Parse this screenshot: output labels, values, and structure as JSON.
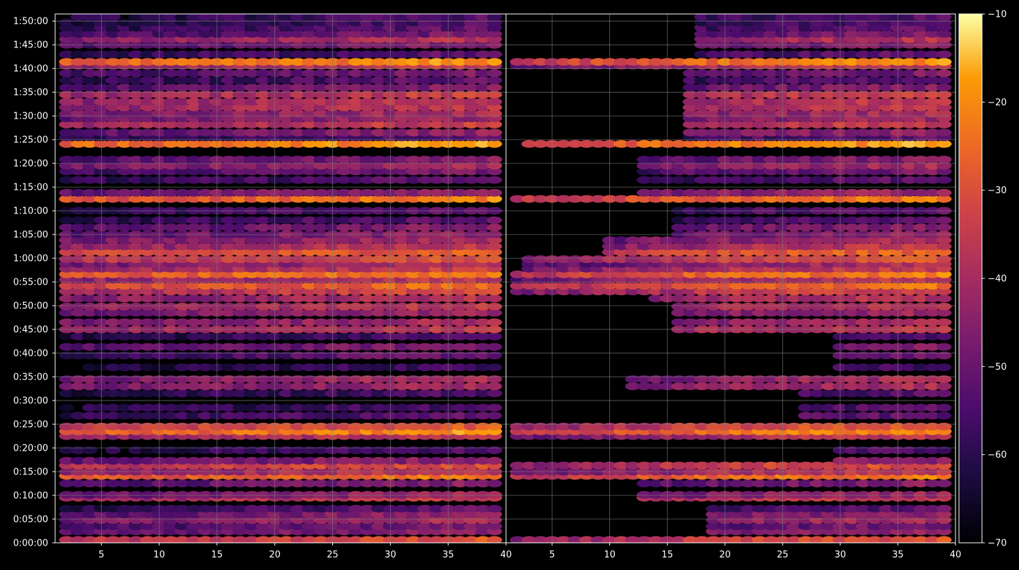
{
  "chart_data": [
    {
      "type": "heatmap",
      "panel": "left",
      "x_ticks": [
        5,
        10,
        15,
        20,
        25,
        30,
        35,
        40
      ],
      "xlim": [
        1,
        40
      ],
      "y_ticks": [
        "0:00:00",
        "0:05:00",
        "0:10:00",
        "0:15:00",
        "0:20:00",
        "0:25:00",
        "0:30:00",
        "0:35:00",
        "0:40:00",
        "0:45:00",
        "0:50:00",
        "0:55:00",
        "1:00:00",
        "1:05:00",
        "1:10:00",
        "1:15:00",
        "1:20:00",
        "1:25:00",
        "1:30:00",
        "1:35:00",
        "1:40:00",
        "1:45:00",
        "1:50:00"
      ],
      "y_range_minutes": [
        0,
        111.5
      ],
      "grid": true,
      "bands": [
        {
          "t": 0.6,
          "level": -34
        },
        {
          "t": 2.4,
          "level": -48
        },
        {
          "t": 3.5,
          "level": -52
        },
        {
          "t": 4.8,
          "level": -44
        },
        {
          "t": 6.0,
          "level": -48
        },
        {
          "t": 7.2,
          "level": -56
        },
        {
          "t": 9.5,
          "level": -38
        },
        {
          "t": 10.1,
          "level": -46
        },
        {
          "t": 12.5,
          "level": -50
        },
        {
          "t": 14.1,
          "level": -26
        },
        {
          "t": 15.0,
          "level": -40
        },
        {
          "t": 16.3,
          "level": -34
        },
        {
          "t": 17.3,
          "level": -48
        },
        {
          "t": 19.5,
          "level": -58
        },
        {
          "t": 22.5,
          "level": -40
        },
        {
          "t": 23.5,
          "level": -24
        },
        {
          "t": 24.5,
          "level": -32
        },
        {
          "t": 26.8,
          "level": -56
        },
        {
          "t": 28.5,
          "level": -58
        },
        {
          "t": 31.5,
          "level": -58
        },
        {
          "t": 33.0,
          "level": -44
        },
        {
          "t": 34.5,
          "level": -44
        },
        {
          "t": 37.0,
          "level": -60
        },
        {
          "t": 39.5,
          "level": -54
        },
        {
          "t": 41.3,
          "level": -50
        },
        {
          "t": 43.5,
          "level": -58
        },
        {
          "t": 45.0,
          "level": -40
        },
        {
          "t": 46.5,
          "level": -44
        },
        {
          "t": 48.5,
          "level": -46
        },
        {
          "t": 49.8,
          "level": -40
        },
        {
          "t": 51.5,
          "level": -42
        },
        {
          "t": 53.0,
          "level": -36
        },
        {
          "t": 54.2,
          "level": -28
        },
        {
          "t": 55.5,
          "level": -40
        },
        {
          "t": 56.6,
          "level": -26
        },
        {
          "t": 57.8,
          "level": -38
        },
        {
          "t": 58.8,
          "level": -44
        },
        {
          "t": 59.8,
          "level": -34
        },
        {
          "t": 61.3,
          "level": -30
        },
        {
          "t": 62.5,
          "level": -40
        },
        {
          "t": 63.8,
          "level": -44
        },
        {
          "t": 65.0,
          "level": -48
        },
        {
          "t": 66.5,
          "level": -50
        },
        {
          "t": 68.0,
          "level": -56
        },
        {
          "t": 70.0,
          "level": -56
        },
        {
          "t": 72.5,
          "level": -26
        },
        {
          "t": 73.8,
          "level": -46
        },
        {
          "t": 76.5,
          "level": -56
        },
        {
          "t": 78.3,
          "level": -52
        },
        {
          "t": 79.5,
          "level": -44
        },
        {
          "t": 80.8,
          "level": -50
        },
        {
          "t": 84.1,
          "level": -22
        },
        {
          "t": 85.5,
          "level": -56
        },
        {
          "t": 86.5,
          "level": -48
        },
        {
          "t": 88.2,
          "level": -38
        },
        {
          "t": 89.5,
          "level": -46
        },
        {
          "t": 90.5,
          "level": -44
        },
        {
          "t": 91.8,
          "level": -40
        },
        {
          "t": 93.0,
          "level": -40
        },
        {
          "t": 94.5,
          "level": -38
        },
        {
          "t": 96.0,
          "level": -50
        },
        {
          "t": 97.5,
          "level": -56
        },
        {
          "t": 99.0,
          "level": -52
        },
        {
          "t": 100.6,
          "level": -40
        },
        {
          "t": 101.4,
          "level": -24
        },
        {
          "t": 103.0,
          "level": -56
        },
        {
          "t": 105.0,
          "level": -50
        },
        {
          "t": 106.2,
          "level": -42
        },
        {
          "t": 107.3,
          "level": -52
        },
        {
          "t": 108.6,
          "level": -56
        },
        {
          "t": 109.7,
          "level": -58
        },
        {
          "t": 110.9,
          "level": -58
        }
      ]
    },
    {
      "type": "heatmap",
      "panel": "right",
      "x_ticks": [
        5,
        10,
        15,
        20,
        25,
        30,
        35,
        40
      ],
      "xlim": [
        1,
        40
      ],
      "y_range_minutes": [
        0,
        111.5
      ],
      "grid": true,
      "note_bands": "same time bands as left panel; low x columns suppressed",
      "suppressed_until_x": [
        {
          "t_from": 0,
          "t_to": 1.2,
          "x_until": 2
        },
        {
          "t_from": 1.2,
          "t_to": 9,
          "x_until": 19
        },
        {
          "t_from": 9,
          "t_to": 13,
          "x_until": 13
        },
        {
          "t_from": 13,
          "t_to": 17,
          "x_until": 1
        },
        {
          "t_from": 17,
          "t_to": 22.5,
          "x_until": 30
        },
        {
          "t_from": 22.5,
          "t_to": 25,
          "x_until": 1
        },
        {
          "t_from": 25,
          "t_to": 32,
          "x_until": 27
        },
        {
          "t_from": 32,
          "t_to": 35,
          "x_until": 12
        },
        {
          "t_from": 35,
          "t_to": 44,
          "x_until": 30
        },
        {
          "t_from": 44,
          "t_to": 50,
          "x_until": 16
        },
        {
          "t_from": 50,
          "t_to": 53,
          "x_until": 14
        },
        {
          "t_from": 53,
          "t_to": 57.5,
          "x_until": 1
        },
        {
          "t_from": 57.5,
          "t_to": 61,
          "x_until": 3
        },
        {
          "t_from": 61,
          "t_to": 64,
          "x_until": 10
        },
        {
          "t_from": 64,
          "t_to": 71.5,
          "x_until": 16
        },
        {
          "t_from": 71.5,
          "t_to": 73,
          "x_until": 1
        },
        {
          "t_from": 73,
          "t_to": 83,
          "x_until": 13
        },
        {
          "t_from": 83,
          "t_to": 85,
          "x_until": 3
        },
        {
          "t_from": 85,
          "t_to": 100,
          "x_until": 17
        },
        {
          "t_from": 100,
          "t_to": 102,
          "x_until": 1
        },
        {
          "t_from": 102,
          "t_to": 112,
          "x_until": 18
        }
      ]
    }
  ],
  "colorbar": {
    "ticks": [
      -10,
      -20,
      -30,
      -40,
      -50,
      -60,
      -70
    ],
    "range": [
      -70,
      -10
    ],
    "colormap": "inferno"
  },
  "colors": {
    "background": "#000000",
    "grid": "#7a7a7a",
    "axes": "#ffffff",
    "text": "#ffffff"
  }
}
